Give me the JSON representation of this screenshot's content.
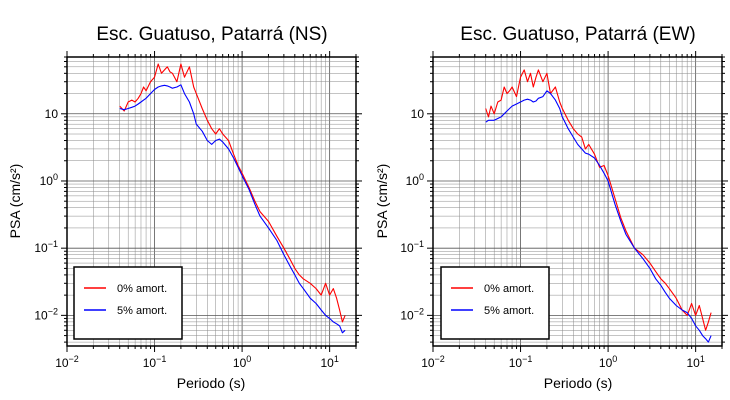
{
  "chart_data": [
    {
      "type": "line",
      "title": "Esc. Guatuso, Patarrá (NS)",
      "xlabel": "Periodo (s)",
      "ylabel": "PSA (cm/s²)",
      "xscale": "log",
      "yscale": "log",
      "xlim": [
        0.01,
        20
      ],
      "ylim": [
        0.0035,
        70
      ],
      "grid": true,
      "legend_position": "bottom-left",
      "x_tick_labels": [
        {
          "value": 0.01,
          "base": "10",
          "exp": "−2"
        },
        {
          "value": 0.1,
          "base": "10",
          "exp": "−1"
        },
        {
          "value": 1,
          "base": "10",
          "exp": "0"
        },
        {
          "value": 10,
          "base": "10",
          "exp": "1"
        }
      ],
      "y_tick_labels": [
        {
          "value": 0.01,
          "base": "10",
          "exp": "−2"
        },
        {
          "value": 0.1,
          "base": "10",
          "exp": "−1"
        },
        {
          "value": 1,
          "base": "10",
          "exp": "0"
        },
        {
          "value": 10,
          "base": "10",
          "exp": ""
        }
      ],
      "series": [
        {
          "name": "0% amort.",
          "color": "#ff0000",
          "x": [
            0.04,
            0.045,
            0.05,
            0.055,
            0.06,
            0.065,
            0.07,
            0.075,
            0.08,
            0.09,
            0.1,
            0.11,
            0.12,
            0.13,
            0.14,
            0.15,
            0.16,
            0.18,
            0.2,
            0.22,
            0.25,
            0.28,
            0.3,
            0.35,
            0.4,
            0.45,
            0.5,
            0.55,
            0.6,
            0.7,
            0.8,
            0.9,
            1.0,
            1.2,
            1.4,
            1.6,
            2.0,
            2.5,
            3.0,
            3.5,
            4.0,
            4.5,
            5.0,
            6.0,
            7.0,
            8.0,
            9.0,
            10,
            11,
            12,
            13,
            14,
            15
          ],
          "y": [
            13,
            11,
            15,
            16,
            15,
            17,
            20,
            25,
            22,
            30,
            35,
            55,
            40,
            45,
            50,
            42,
            40,
            30,
            55,
            35,
            50,
            25,
            20,
            12,
            8,
            6,
            5,
            6,
            5,
            4,
            2.5,
            1.7,
            1.3,
            0.8,
            0.5,
            0.35,
            0.25,
            0.15,
            0.1,
            0.07,
            0.05,
            0.04,
            0.035,
            0.03,
            0.025,
            0.02,
            0.03,
            0.02,
            0.025,
            0.018,
            0.012,
            0.008,
            0.01
          ]
        },
        {
          "name": "5% amort.",
          "color": "#0000ff",
          "x": [
            0.04,
            0.045,
            0.05,
            0.055,
            0.06,
            0.065,
            0.07,
            0.075,
            0.08,
            0.09,
            0.1,
            0.11,
            0.12,
            0.13,
            0.14,
            0.15,
            0.16,
            0.18,
            0.2,
            0.22,
            0.25,
            0.28,
            0.3,
            0.35,
            0.4,
            0.45,
            0.5,
            0.55,
            0.6,
            0.7,
            0.8,
            0.9,
            1.0,
            1.2,
            1.4,
            1.6,
            2.0,
            2.5,
            3.0,
            3.5,
            4.0,
            4.5,
            5.0,
            6.0,
            7.0,
            8.0,
            9.0,
            10,
            11,
            12,
            13,
            14,
            15
          ],
          "y": [
            12,
            11.5,
            12,
            12.5,
            13,
            14,
            15,
            16,
            17,
            20,
            23,
            25,
            26,
            26.5,
            26,
            25,
            24,
            25,
            27,
            20,
            15,
            10,
            7,
            5.5,
            4,
            3.5,
            4,
            4.2,
            3.8,
            3,
            2.2,
            1.6,
            1.2,
            0.75,
            0.45,
            0.3,
            0.2,
            0.13,
            0.08,
            0.055,
            0.04,
            0.03,
            0.025,
            0.018,
            0.015,
            0.012,
            0.01,
            0.009,
            0.008,
            0.0075,
            0.007,
            0.0055,
            0.006
          ]
        }
      ]
    },
    {
      "type": "line",
      "title": "Esc. Guatuso, Patarrá (EW)",
      "xlabel": "Periodo (s)",
      "ylabel": "PSA (cm/s²)",
      "xscale": "log",
      "yscale": "log",
      "xlim": [
        0.01,
        20
      ],
      "ylim": [
        0.0035,
        70
      ],
      "grid": true,
      "legend_position": "bottom-left",
      "x_tick_labels": [
        {
          "value": 0.01,
          "base": "10",
          "exp": "−2"
        },
        {
          "value": 0.1,
          "base": "10",
          "exp": "−1"
        },
        {
          "value": 1,
          "base": "10",
          "exp": "0"
        },
        {
          "value": 10,
          "base": "10",
          "exp": "1"
        }
      ],
      "y_tick_labels": [
        {
          "value": 0.01,
          "base": "10",
          "exp": "−2"
        },
        {
          "value": 0.1,
          "base": "10",
          "exp": "−1"
        },
        {
          "value": 1,
          "base": "10",
          "exp": "0"
        },
        {
          "value": 10,
          "base": "10",
          "exp": ""
        }
      ],
      "series": [
        {
          "name": "0% amort.",
          "color": "#ff0000",
          "x": [
            0.04,
            0.043,
            0.046,
            0.05,
            0.055,
            0.06,
            0.065,
            0.07,
            0.075,
            0.08,
            0.09,
            0.1,
            0.11,
            0.12,
            0.13,
            0.14,
            0.15,
            0.16,
            0.18,
            0.2,
            0.22,
            0.25,
            0.28,
            0.3,
            0.35,
            0.4,
            0.45,
            0.5,
            0.55,
            0.6,
            0.7,
            0.8,
            0.9,
            1.0,
            1.2,
            1.4,
            1.6,
            2.0,
            2.5,
            3.0,
            3.5,
            4.0,
            4.5,
            5.0,
            6.0,
            7.0,
            8.0,
            9.0,
            10,
            11,
            12,
            13,
            14,
            15
          ],
          "y": [
            12,
            9,
            13,
            10,
            15,
            16,
            25,
            20,
            22,
            25,
            18,
            35,
            45,
            30,
            40,
            25,
            35,
            45,
            30,
            40,
            20,
            25,
            15,
            12,
            8,
            6,
            5,
            4.5,
            3,
            3.5,
            2.5,
            1.6,
            1.7,
            1.2,
            0.55,
            0.28,
            0.18,
            0.1,
            0.08,
            0.06,
            0.045,
            0.035,
            0.03,
            0.025,
            0.018,
            0.012,
            0.01,
            0.015,
            0.01,
            0.014,
            0.009,
            0.006,
            0.008,
            0.011
          ]
        },
        {
          "name": "5% amort.",
          "color": "#0000ff",
          "x": [
            0.04,
            0.043,
            0.046,
            0.05,
            0.055,
            0.06,
            0.065,
            0.07,
            0.075,
            0.08,
            0.09,
            0.1,
            0.11,
            0.12,
            0.13,
            0.14,
            0.15,
            0.16,
            0.18,
            0.2,
            0.22,
            0.25,
            0.28,
            0.3,
            0.35,
            0.4,
            0.45,
            0.5,
            0.55,
            0.6,
            0.7,
            0.8,
            0.9,
            1.0,
            1.2,
            1.4,
            1.6,
            2.0,
            2.5,
            3.0,
            3.5,
            4.0,
            4.5,
            5.0,
            6.0,
            7.0,
            8.0,
            9.0,
            10,
            11,
            12,
            13,
            14,
            15
          ],
          "y": [
            7.5,
            8,
            8,
            8,
            8.5,
            9,
            10,
            11,
            12,
            13,
            14,
            15,
            16,
            16.5,
            16,
            15,
            15.5,
            17,
            18,
            22,
            20,
            16,
            12,
            9,
            6,
            4.5,
            3.5,
            3,
            2.6,
            2.5,
            2.2,
            1.7,
            1.3,
            1.0,
            0.45,
            0.25,
            0.16,
            0.1,
            0.07,
            0.05,
            0.035,
            0.028,
            0.022,
            0.018,
            0.014,
            0.012,
            0.011,
            0.009,
            0.007,
            0.006,
            0.005,
            0.0045,
            0.004,
            0.005
          ]
        }
      ]
    }
  ]
}
